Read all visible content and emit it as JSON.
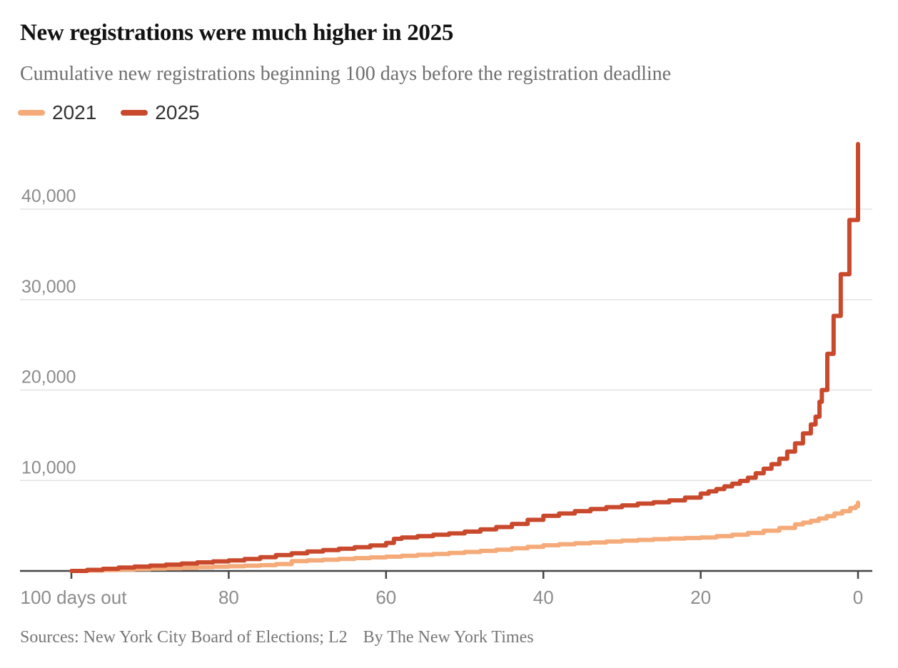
{
  "chart_data": {
    "type": "line",
    "title": "New registrations were much higher in 2025",
    "subtitle": "Cumulative new registrations beginning 100 days before the registration deadline",
    "source_line": "Sources: New York City Board of Elections; L2",
    "byline": "By The New York Times",
    "legend_position": "top-left",
    "grid": true,
    "legend": [
      {
        "label": "2021",
        "color": "#f5ab79"
      },
      {
        "label": "2025",
        "color": "#c9492d"
      }
    ],
    "x_axis": {
      "description": "days before the registration deadline, decreasing left to right",
      "range": [
        100,
        0
      ],
      "ticks": [
        100,
        80,
        60,
        40,
        20,
        0
      ],
      "tick_labels": [
        "100 days out",
        "80",
        "60",
        "40",
        "20",
        "0"
      ]
    },
    "y_axis": {
      "description": "cumulative new registrations",
      "range": [
        0,
        47500
      ],
      "ticks": [
        10000,
        20000,
        30000,
        40000
      ],
      "tick_labels": [
        "10,000",
        "20,000",
        "30,000",
        "40,000"
      ]
    },
    "colors": {
      "title": "#121212",
      "subtitle": "#6f6f6f",
      "legend_text": "#333333",
      "grid": "#e3e3e3",
      "axis": "#454545",
      "axis_label": "#8c8c8c",
      "background": "#ffffff"
    },
    "series": [
      {
        "name": "2021",
        "color": "#f5ab79",
        "final_value": 7550,
        "points": [
          [
            100,
            0
          ],
          [
            98,
            50
          ],
          [
            96,
            100
          ],
          [
            94,
            150
          ],
          [
            92,
            200
          ],
          [
            90,
            250
          ],
          [
            88,
            300
          ],
          [
            86,
            350
          ],
          [
            84,
            420
          ],
          [
            82,
            470
          ],
          [
            80,
            520
          ],
          [
            78,
            580
          ],
          [
            76,
            640
          ],
          [
            74,
            760
          ],
          [
            72,
            1080
          ],
          [
            70,
            1170
          ],
          [
            68,
            1250
          ],
          [
            66,
            1330
          ],
          [
            64,
            1420
          ],
          [
            62,
            1500
          ],
          [
            60,
            1580
          ],
          [
            58,
            1680
          ],
          [
            56,
            1780
          ],
          [
            54,
            1880
          ],
          [
            52,
            1990
          ],
          [
            50,
            2100
          ],
          [
            48,
            2220
          ],
          [
            46,
            2350
          ],
          [
            44,
            2500
          ],
          [
            42,
            2670
          ],
          [
            40,
            2840
          ],
          [
            38,
            2950
          ],
          [
            36,
            3050
          ],
          [
            34,
            3150
          ],
          [
            32,
            3250
          ],
          [
            30,
            3350
          ],
          [
            28,
            3430
          ],
          [
            26,
            3510
          ],
          [
            24,
            3580
          ],
          [
            22,
            3640
          ],
          [
            20,
            3700
          ],
          [
            18,
            3850
          ],
          [
            16,
            4000
          ],
          [
            14,
            4200
          ],
          [
            12,
            4450
          ],
          [
            10,
            4750
          ],
          [
            8,
            5150
          ],
          [
            7,
            5350
          ],
          [
            6,
            5550
          ],
          [
            5,
            5800
          ],
          [
            4,
            6050
          ],
          [
            3,
            6350
          ],
          [
            2,
            6600
          ],
          [
            1,
            6950
          ],
          [
            0.3,
            7150
          ],
          [
            0,
            7550
          ]
        ]
      },
      {
        "name": "2025",
        "color": "#c9492d",
        "final_value": 47200,
        "points": [
          [
            100,
            0
          ],
          [
            98,
            120
          ],
          [
            96,
            240
          ],
          [
            94,
            370
          ],
          [
            92,
            480
          ],
          [
            90,
            590
          ],
          [
            88,
            700
          ],
          [
            86,
            820
          ],
          [
            84,
            950
          ],
          [
            82,
            1060
          ],
          [
            80,
            1170
          ],
          [
            78,
            1320
          ],
          [
            76,
            1520
          ],
          [
            74,
            1750
          ],
          [
            72,
            1950
          ],
          [
            70,
            2150
          ],
          [
            68,
            2300
          ],
          [
            66,
            2450
          ],
          [
            64,
            2620
          ],
          [
            62,
            2820
          ],
          [
            60,
            3100
          ],
          [
            59,
            3550
          ],
          [
            58,
            3700
          ],
          [
            56,
            3850
          ],
          [
            54,
            4000
          ],
          [
            52,
            4150
          ],
          [
            50,
            4350
          ],
          [
            48,
            4600
          ],
          [
            46,
            4850
          ],
          [
            44,
            5200
          ],
          [
            42,
            5650
          ],
          [
            40,
            6100
          ],
          [
            38,
            6350
          ],
          [
            36,
            6600
          ],
          [
            34,
            6850
          ],
          [
            32,
            7050
          ],
          [
            30,
            7250
          ],
          [
            28,
            7450
          ],
          [
            26,
            7600
          ],
          [
            24,
            7800
          ],
          [
            22,
            8100
          ],
          [
            20,
            8550
          ],
          [
            19,
            8800
          ],
          [
            18,
            9050
          ],
          [
            17,
            9350
          ],
          [
            16,
            9650
          ],
          [
            15,
            9950
          ],
          [
            14,
            10300
          ],
          [
            13,
            10800
          ],
          [
            12,
            11300
          ],
          [
            11,
            11800
          ],
          [
            10,
            12400
          ],
          [
            9,
            13200
          ],
          [
            8,
            14100
          ],
          [
            7,
            15200
          ],
          [
            6,
            16200
          ],
          [
            5.4,
            17050
          ],
          [
            4.9,
            18700
          ],
          [
            4.6,
            20000
          ],
          [
            3.9,
            24000
          ],
          [
            3.1,
            28200
          ],
          [
            2.2,
            32800
          ],
          [
            1.1,
            38800
          ],
          [
            0,
            47200
          ]
        ]
      }
    ]
  }
}
